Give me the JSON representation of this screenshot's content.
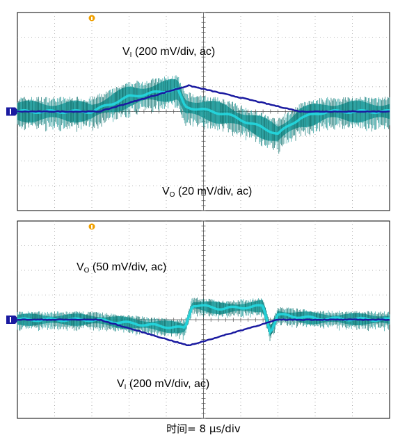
{
  "footer": {
    "timebase": "时间= 8 μs/div"
  },
  "colors": {
    "input": "#1a1aa0",
    "output_fill": "#1e9b9b",
    "output_dark": "#0d6f6c",
    "output_bright": "#23d8e0",
    "marker": "#f0a000",
    "grid": "#9a9a9a"
  },
  "chart_data": [
    {
      "type": "line",
      "panel": "top",
      "x_divisions": 10,
      "y_divisions": 8,
      "series": [
        {
          "name": "V_I (200 mV/div, ac)",
          "label_main": "V",
          "label_sub": "I",
          "label_rest": " (200 mV/div, ac)",
          "x": [
            0,
            2.2,
            4.6,
            7.6,
            10
          ],
          "y": [
            0,
            0,
            1.05,
            0,
            0
          ]
        },
        {
          "name": "V_O (20 mV/div, ac)",
          "label_main": "V",
          "label_sub": "O",
          "label_rest": " (20 mV/div, ac)",
          "x": [
            0,
            2.0,
            3.0,
            4.3,
            4.5,
            5.6,
            6.4,
            7.0,
            7.6,
            8.3,
            10
          ],
          "y": [
            0,
            0,
            0.6,
            0.9,
            0.2,
            -0.1,
            -0.55,
            -0.9,
            -0.25,
            0,
            0
          ],
          "envelope_halfwidth": 0.45
        }
      ]
    },
    {
      "type": "line",
      "panel": "bottom",
      "x_divisions": 10,
      "y_divisions": 8,
      "series": [
        {
          "name": "V_O (50 mV/div, ac)",
          "label_main": "V",
          "label_sub": "O",
          "label_rest": " (50 mV/div, ac)",
          "x": [
            0,
            2.0,
            4.5,
            4.7,
            5.5,
            6.6,
            6.8,
            7.0,
            8.0,
            10
          ],
          "y": [
            0,
            0,
            -0.35,
            0.6,
            0.45,
            0.55,
            -0.5,
            0.2,
            0.05,
            0
          ],
          "envelope_halfwidth": 0.25
        },
        {
          "name": "V_I (200 mV/div, ac)",
          "label_main": "V",
          "label_sub": "I",
          "label_rest": " (200 mV/div, ac)",
          "x": [
            0,
            2.2,
            4.6,
            7.0,
            10
          ],
          "y": [
            0,
            0,
            -1.05,
            0,
            0
          ]
        }
      ]
    }
  ]
}
